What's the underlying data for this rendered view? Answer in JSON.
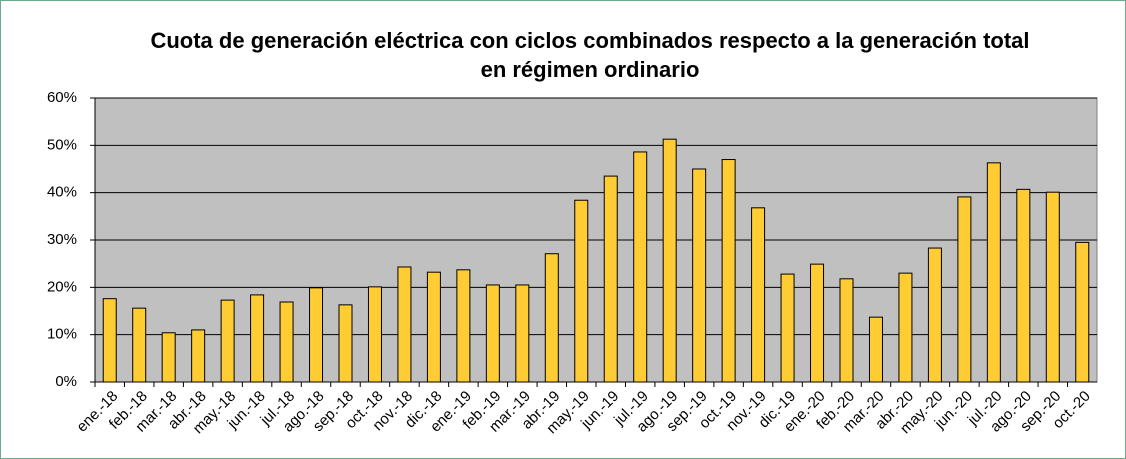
{
  "chart_data": {
    "type": "bar",
    "title": "Cuota de generación eléctrica con ciclos combinados respecto a la generación total en régimen ordinario",
    "categories": [
      "ene.-18",
      "feb.-18",
      "mar.-18",
      "abr.-18",
      "may.-18",
      "jun.-18",
      "jul.-18",
      "ago.-18",
      "sep.-18",
      "oct.-18",
      "nov.-18",
      "dic.-18",
      "ene.-19",
      "feb.-19",
      "mar.-19",
      "abr.-19",
      "may.-19",
      "jun.-19",
      "jul.-19",
      "ago.-19",
      "sep.-19",
      "oct.-19",
      "nov.-19",
      "dic.-19",
      "ene.-20",
      "feb.-20",
      "mar.-20",
      "abr.-20",
      "may.-20",
      "jun.-20",
      "jul.-20",
      "ago.-20",
      "sep.-20",
      "oct.-20"
    ],
    "values": [
      17.6,
      15.6,
      10.4,
      11,
      17.3,
      18.4,
      16.9,
      19.9,
      16.3,
      20.1,
      24.3,
      23.2,
      23.7,
      20.5,
      20.5,
      27.1,
      38.4,
      43.5,
      48.6,
      51.3,
      45,
      47,
      36.8,
      22.8,
      24.9,
      21.8,
      13.7,
      23,
      28.3,
      39.1,
      46.3,
      40.7,
      40.1,
      29.5
    ],
    "color": "#ffcc33",
    "ylim": [
      0,
      60
    ],
    "yticks": [
      {
        "value": 0,
        "label": "0%"
      },
      {
        "value": 10,
        "label": "10%"
      },
      {
        "value": 20,
        "label": "20%"
      },
      {
        "value": 30,
        "label": "30%"
      },
      {
        "value": 40,
        "label": "40%"
      },
      {
        "value": 50,
        "label": "50%"
      },
      {
        "value": 60,
        "label": "60%"
      }
    ],
    "grid": true
  }
}
